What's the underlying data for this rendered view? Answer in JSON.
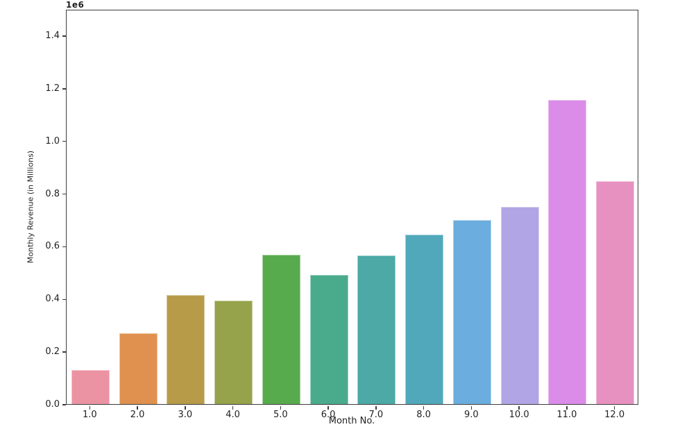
{
  "figure": {
    "background": "#ffffff",
    "text_color": "#1f1f1f",
    "spine_color": "#3c3c3c"
  },
  "chart_data": {
    "type": "bar",
    "title": "",
    "xlabel": "Month No.",
    "ylabel": "Monthly Revenue (in Millions)",
    "offset_label": "1e6",
    "categories": [
      "1.0",
      "2.0",
      "3.0",
      "4.0",
      "5.0",
      "6.0",
      "7.0",
      "8.0",
      "9.0",
      "10.0",
      "11.0",
      "12.0"
    ],
    "values": [
      130000,
      270000,
      413000,
      394000,
      566000,
      490000,
      565000,
      643000,
      698000,
      750000,
      1155000,
      845000
    ],
    "bar_colors": [
      "#ec93a3",
      "#e0914f",
      "#b79b49",
      "#96a34b",
      "#58ab4c",
      "#4aab8c",
      "#4ca9a6",
      "#52a8bb",
      "#6badde",
      "#b2a5e6",
      "#da8ce8",
      "#e791c0"
    ],
    "ylim": [
      0,
      1500000
    ],
    "yticks": [
      0,
      200000,
      400000,
      600000,
      800000,
      1000000,
      1200000,
      1400000
    ],
    "ytick_labels": [
      "0.0",
      "0.2",
      "0.4",
      "0.6",
      "0.8",
      "1.0",
      "1.2",
      "1.4"
    ],
    "grid": false,
    "legend": null,
    "bar_width_fraction": 0.8
  }
}
